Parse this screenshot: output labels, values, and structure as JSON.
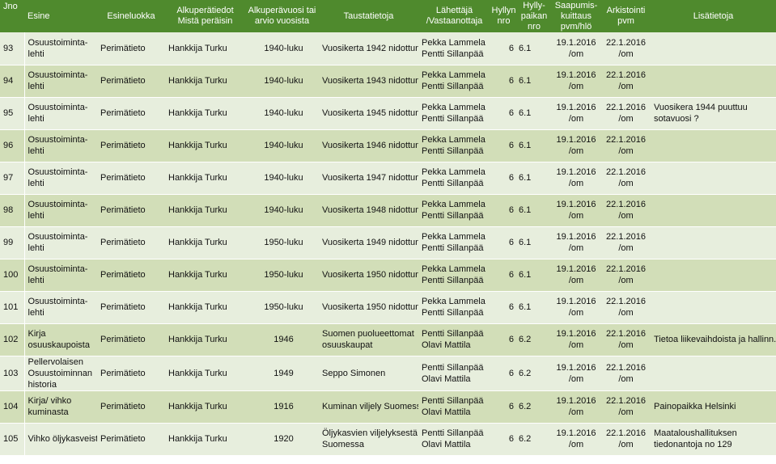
{
  "headers": {
    "jno": "Jno",
    "esine": "Esine",
    "esineluokka": "Esineluokka",
    "alkuperatiedot": [
      "Alkuperätiedot",
      "Mistä peräisin"
    ],
    "alkuperavuosi": [
      "Alkuperävuosi tai",
      "arvio vuosista"
    ],
    "taustatietoja": "Taustatietoja",
    "lahettaja": [
      "Lähettäjä",
      "/Vastaanottaja"
    ],
    "hyllynnro": [
      "Hyllyn",
      "nro"
    ],
    "hyllypaikan": [
      "Hylly-",
      "paikan",
      "nro"
    ],
    "saapumis": [
      "Saapumis-",
      "kuittaus",
      "pvm/hlö"
    ],
    "arkistointi": [
      "Arkistointi",
      "pvm"
    ],
    "lisatietoja": "Lisätietoja"
  },
  "rows": [
    {
      "no": "93",
      "esine": [
        "Osuustoiminta-",
        "lehti"
      ],
      "luokka": "Perimätieto",
      "alkupera": "Hankkija Turku",
      "vuosi": "1940-luku",
      "tausta": [
        "Vuosikerta 1942 nidottuna"
      ],
      "lahettaja": [
        "Pekka Lammela",
        "Pentti Sillanpää"
      ],
      "hyllyn": "6",
      "paikka": "6.1",
      "saapumis": [
        "19.1.2016",
        "/om"
      ],
      "arkistointi": [
        "22.1.2016",
        "/om"
      ],
      "lisa": []
    },
    {
      "no": "94",
      "esine": [
        "Osuustoiminta-",
        "lehti"
      ],
      "luokka": "Perimätieto",
      "alkupera": "Hankkija Turku",
      "vuosi": "1940-luku",
      "tausta": [
        "Vuosikerta 1943 nidottuna"
      ],
      "lahettaja": [
        "Pekka Lammela",
        "Pentti Sillanpää"
      ],
      "hyllyn": "6",
      "paikka": "6.1",
      "saapumis": [
        "19.1.2016",
        "/om"
      ],
      "arkistointi": [
        "22.1.2016",
        "/om"
      ],
      "lisa": []
    },
    {
      "no": "95",
      "esine": [
        "Osuustoiminta-",
        "lehti"
      ],
      "luokka": "Perimätieto",
      "alkupera": "Hankkija Turku",
      "vuosi": "1940-luku",
      "tausta": [
        "Vuosikerta 1945 nidottuna"
      ],
      "lahettaja": [
        "Pekka Lammela",
        "Pentti Sillanpää"
      ],
      "hyllyn": "6",
      "paikka": "6.1",
      "saapumis": [
        "19.1.2016",
        "/om"
      ],
      "arkistointi": [
        "22.1.2016",
        "/om"
      ],
      "lisa": [
        "Vuosikera 1944 puuttuu",
        "sotavuosi ?"
      ]
    },
    {
      "no": "96",
      "esine": [
        "Osuustoiminta-",
        "lehti"
      ],
      "luokka": "Perimätieto",
      "alkupera": "Hankkija Turku",
      "vuosi": "1940-luku",
      "tausta": [
        "Vuosikerta 1946 nidottuna"
      ],
      "lahettaja": [
        "Pekka Lammela",
        "Pentti Sillanpää"
      ],
      "hyllyn": "6",
      "paikka": "6.1",
      "saapumis": [
        "19.1.2016",
        "/om"
      ],
      "arkistointi": [
        "22.1.2016",
        "/om"
      ],
      "lisa": []
    },
    {
      "no": "97",
      "esine": [
        "Osuustoiminta-",
        "lehti"
      ],
      "luokka": "Perimätieto",
      "alkupera": "Hankkija Turku",
      "vuosi": "1940-luku",
      "tausta": [
        "Vuosikerta 1947 nidottuna"
      ],
      "lahettaja": [
        "Pekka Lammela",
        "Pentti Sillanpää"
      ],
      "hyllyn": "6",
      "paikka": "6.1",
      "saapumis": [
        "19.1.2016",
        "/om"
      ],
      "arkistointi": [
        "22.1.2016",
        "/om"
      ],
      "lisa": []
    },
    {
      "no": "98",
      "esine": [
        "Osuustoiminta-",
        "lehti"
      ],
      "luokka": "Perimätieto",
      "alkupera": "Hankkija Turku",
      "vuosi": "1940-luku",
      "tausta": [
        "Vuosikerta 1948 nidottuna"
      ],
      "lahettaja": [
        "Pekka Lammela",
        "Pentti Sillanpää"
      ],
      "hyllyn": "6",
      "paikka": "6.1",
      "saapumis": [
        "19.1.2016",
        "/om"
      ],
      "arkistointi": [
        "22.1.2016",
        "/om"
      ],
      "lisa": []
    },
    {
      "no": "99",
      "esine": [
        "Osuustoiminta-",
        "lehti"
      ],
      "luokka": "Perimätieto",
      "alkupera": "Hankkija Turku",
      "vuosi": "1950-luku",
      "tausta": [
        "Vuosikerta 1949 nidottuna"
      ],
      "lahettaja": [
        "Pekka Lammela",
        "Pentti Sillanpää"
      ],
      "hyllyn": "6",
      "paikka": "6.1",
      "saapumis": [
        "19.1.2016",
        "/om"
      ],
      "arkistointi": [
        "22.1.2016",
        "/om"
      ],
      "lisa": []
    },
    {
      "no": "100",
      "esine": [
        "Osuustoiminta-",
        "lehti"
      ],
      "luokka": "Perimätieto",
      "alkupera": "Hankkija Turku",
      "vuosi": "1950-luku",
      "tausta": [
        "Vuosikerta 1950 nidottuna"
      ],
      "lahettaja": [
        "Pekka Lammela",
        "Pentti Sillanpää"
      ],
      "hyllyn": "6",
      "paikka": "6.1",
      "saapumis": [
        "19.1.2016",
        "/om"
      ],
      "arkistointi": [
        "22.1.2016",
        "/om"
      ],
      "lisa": []
    },
    {
      "no": "101",
      "esine": [
        "Osuustoiminta-",
        "lehti"
      ],
      "luokka": "Perimätieto",
      "alkupera": "Hankkija Turku",
      "vuosi": "1950-luku",
      "tausta": [
        "Vuosikerta 1950 nidottuna"
      ],
      "lahettaja": [
        "Pekka Lammela",
        "Pentti Sillanpää"
      ],
      "hyllyn": "6",
      "paikka": "6.1",
      "saapumis": [
        "19.1.2016",
        "/om"
      ],
      "arkistointi": [
        "22.1.2016",
        "/om"
      ],
      "lisa": []
    },
    {
      "no": "102",
      "esine": [
        "Kirja",
        "osuuskaupoista"
      ],
      "luokka": "Perimätieto",
      "alkupera": "Hankkija Turku",
      "vuosi": "1946",
      "tausta": [
        "Suomen puolueettomat",
        "osuuskaupat"
      ],
      "lahettaja": [
        "Pentti Sillanpää",
        "Olavi Mattila"
      ],
      "hyllyn": "6",
      "paikka": "6.2",
      "saapumis": [
        "19.1.2016",
        "/om"
      ],
      "arkistointi": [
        "22.1.2016",
        "/om"
      ],
      "lisa": [
        "Tietoa liikevaihdoista ja hallinn."
      ]
    },
    {
      "no": "103",
      "esine": [
        "Pellervolaisen",
        "Osuustoiminnan",
        "historia"
      ],
      "luokka": "Perimätieto",
      "alkupera": "Hankkija Turku",
      "vuosi": "1949",
      "tausta": [
        "Seppo Simonen"
      ],
      "lahettaja": [
        "Pentti Sillanpää",
        "Olavi Mattila"
      ],
      "hyllyn": "6",
      "paikka": "6.2",
      "saapumis": [
        "19.1.2016",
        "/om"
      ],
      "arkistointi": [
        "22.1.2016",
        "/om"
      ],
      "lisa": []
    },
    {
      "no": "104",
      "esine": [
        "Kirja/ vihko",
        "kuminasta"
      ],
      "luokka": "Perimätieto",
      "alkupera": "Hankkija Turku",
      "vuosi": "1916",
      "tausta": [
        "Kuminan  viljely Suomessa"
      ],
      "lahettaja": [
        "Pentti Sillanpää",
        "Olavi Mattila"
      ],
      "hyllyn": "6",
      "paikka": "6.2",
      "saapumis": [
        "19.1.2016",
        "/om"
      ],
      "arkistointi": [
        "22.1.2016",
        "/om"
      ],
      "lisa": [
        "Painopaikka Helsinki"
      ]
    },
    {
      "no": "105",
      "esine": [
        "Vihko öljykasveista"
      ],
      "luokka": "Perimätieto",
      "alkupera": "Hankkija Turku",
      "vuosi": "1920",
      "tausta": [
        "Öljykasvien viljelyksestä",
        "Suomessa"
      ],
      "lahettaja": [
        "Pentti Sillanpää",
        "Olavi Mattila"
      ],
      "hyllyn": "6",
      "paikka": "6.2",
      "saapumis": [
        "19.1.2016",
        "/om"
      ],
      "arkistointi": [
        "22.1.2016",
        "/om"
      ],
      "lisa": [
        "Maataloushallituksen",
        "tiedonantoja no 129"
      ]
    }
  ],
  "colors": {
    "header": "#4f8a2d",
    "row_light": "#e7eedd",
    "row_dark": "#d2deb8"
  }
}
